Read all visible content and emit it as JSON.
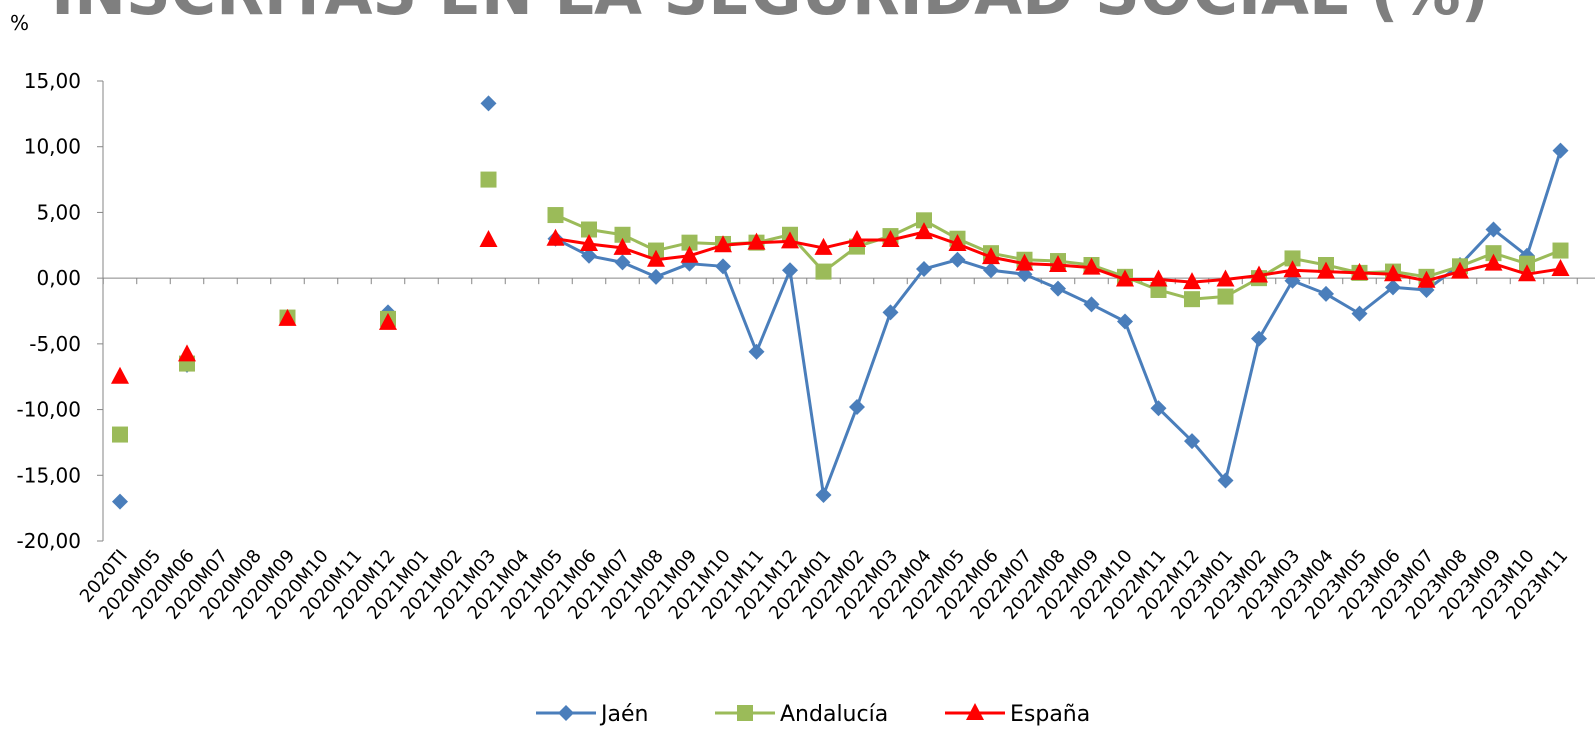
{
  "chart_data": {
    "type": "line",
    "title": "INSCRITAS EN LA SEGURIDAD SOCIAL (%)",
    "y_label": "%",
    "categories": [
      "2020TI",
      "2020M05",
      "2020M06",
      "2020M07",
      "2020M08",
      "2020M09",
      "2020M10",
      "2020M11",
      "2020M12",
      "2021M01",
      "2021M02",
      "2021M03",
      "2021M04",
      "2021M05",
      "2021M06",
      "2021M07",
      "2021M08",
      "2021M09",
      "2021M10",
      "2021M11",
      "2021M12",
      "2022M01",
      "2022M02",
      "2022M03",
      "2022M04",
      "2022M05",
      "2022M06",
      "2022M07",
      "2022M08",
      "2022M09",
      "2022M10",
      "2022M11",
      "2022M12",
      "2023M01",
      "2023M02",
      "2023M03",
      "2023M04",
      "2023M05",
      "2023M06",
      "2023M07",
      "2023M08",
      "2023M09",
      "2023M10",
      "2023M11"
    ],
    "series": [
      {
        "name": "Jaén",
        "color": "#4a7ebb",
        "marker": "diamond",
        "values": [
          -17.0,
          null,
          -6.6,
          null,
          null,
          -3.0,
          null,
          null,
          -2.6,
          null,
          null,
          13.3,
          null,
          3.0,
          1.7,
          1.2,
          0.1,
          1.1,
          0.9,
          -5.6,
          0.6,
          -16.5,
          -9.8,
          -2.6,
          0.7,
          1.4,
          0.6,
          0.3,
          -0.8,
          -2.0,
          -3.3,
          -9.9,
          -12.4,
          -15.4,
          -4.6,
          -0.2,
          -1.2,
          -2.7,
          -0.7,
          -0.9,
          1.0,
          3.7,
          1.7,
          9.7
        ]
      },
      {
        "name": "Andalucía",
        "color": "#9bbb59",
        "marker": "square",
        "values": [
          -11.9,
          null,
          -6.5,
          null,
          null,
          -3.0,
          null,
          null,
          -3.1,
          null,
          null,
          7.5,
          null,
          4.8,
          3.7,
          3.3,
          2.1,
          2.7,
          2.6,
          2.7,
          3.3,
          0.5,
          2.4,
          3.2,
          4.4,
          3.0,
          1.9,
          1.4,
          1.3,
          1.0,
          0.1,
          -0.9,
          -1.6,
          -1.4,
          0.0,
          1.5,
          1.0,
          0.4,
          0.5,
          0.1,
          0.9,
          1.9,
          1.1,
          2.1
        ]
      },
      {
        "name": "España",
        "color": "#ff0000",
        "marker": "triangle",
        "values": [
          -7.5,
          null,
          -5.8,
          null,
          null,
          -3.1,
          null,
          null,
          -3.4,
          null,
          null,
          2.9,
          null,
          3.0,
          2.6,
          2.3,
          1.4,
          1.7,
          2.5,
          2.7,
          2.8,
          2.3,
          2.9,
          2.9,
          3.5,
          2.6,
          1.6,
          1.1,
          1.0,
          0.8,
          -0.1,
          -0.1,
          -0.3,
          -0.1,
          0.2,
          0.6,
          0.5,
          0.4,
          0.3,
          -0.2,
          0.5,
          1.1,
          0.3,
          0.7
        ]
      }
    ],
    "ylim": [
      -20,
      15
    ],
    "yticks": [
      {
        "value": -20,
        "label": "-20,00"
      },
      {
        "value": -15,
        "label": "-15,00"
      },
      {
        "value": -10,
        "label": "-10,00"
      },
      {
        "value": -5,
        "label": "-5,00"
      },
      {
        "value": 0,
        "label": "0,00"
      },
      {
        "value": 5,
        "label": "5,00"
      },
      {
        "value": 10,
        "label": "10,00"
      },
      {
        "value": 15,
        "label": "15,00"
      }
    ],
    "legend": "bottom"
  }
}
